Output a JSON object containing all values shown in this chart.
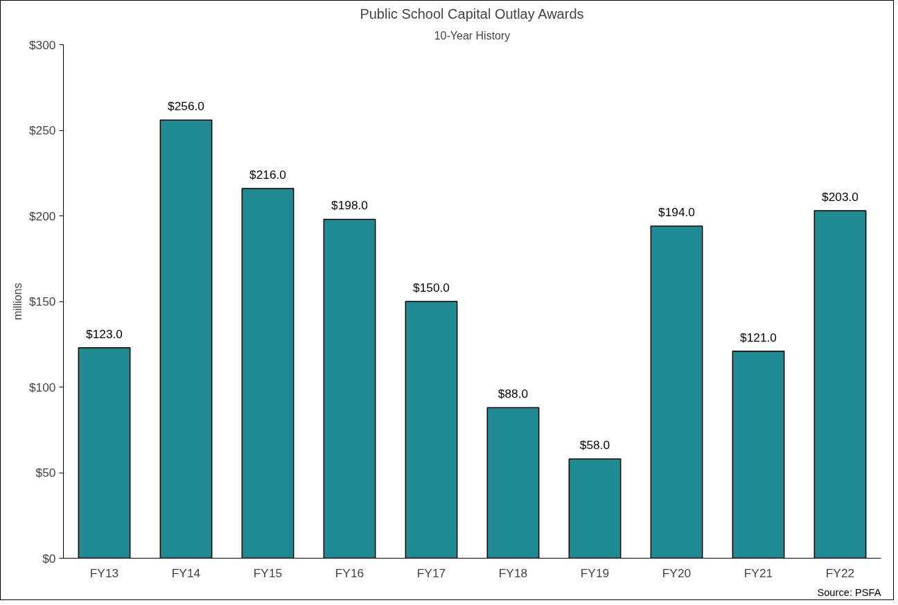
{
  "chart_data": {
    "type": "bar",
    "title": "Public School Capital Outlay Awards",
    "subtitle": "10-Year History",
    "ylabel": "millions",
    "categories": [
      "FY13",
      "FY14",
      "FY15",
      "FY16",
      "FY17",
      "FY18",
      "FY19",
      "FY20",
      "FY21",
      "FY22"
    ],
    "values": [
      123,
      256,
      216,
      198,
      150,
      88,
      58,
      194,
      121,
      203
    ],
    "value_labels": [
      "$123.0",
      "$256.0",
      "$216.0",
      "$198.0",
      "$150.0",
      "$88.0",
      "$58.0",
      "$194.0",
      "$121.0",
      "$203.0"
    ],
    "color": "#1f8a91",
    "ylim": [
      0,
      300
    ],
    "yticks": [
      {
        "value": 0,
        "label": "$0"
      },
      {
        "value": 50,
        "label": "$50"
      },
      {
        "value": 100,
        "label": "$100"
      },
      {
        "value": 150,
        "label": "$150"
      },
      {
        "value": 200,
        "label": "$200"
      },
      {
        "value": 250,
        "label": "$250"
      },
      {
        "value": 300,
        "label": "$300"
      }
    ],
    "grid": false,
    "annotations": [
      "Source: PSFA"
    ]
  }
}
